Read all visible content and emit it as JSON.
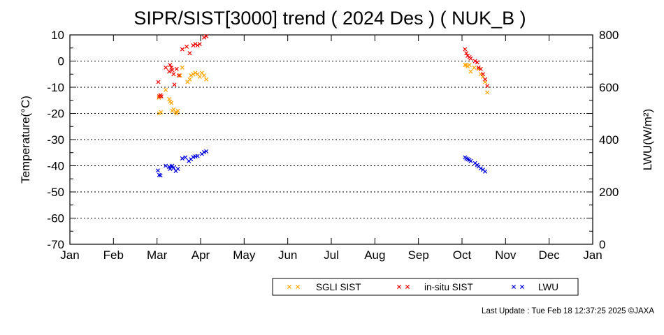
{
  "chart_data": {
    "type": "scatter",
    "title": "SIPR/SIST[3000] trend ( 2024 Des ) ( NUK_B )",
    "ylabel": "Temperature(°C)",
    "y2label": "LWU(W/m²)",
    "ylim": [
      -70,
      10
    ],
    "y2lim": [
      0,
      800
    ],
    "xlim": [
      0,
      12
    ],
    "yticks": [
      "10",
      "0",
      "-10",
      "-20",
      "-30",
      "-40",
      "-50",
      "-60",
      "-70"
    ],
    "y2ticks": [
      "800",
      "600",
      "400",
      "200",
      "0"
    ],
    "months": [
      "Jan",
      "Feb",
      "Mar",
      "Apr",
      "May",
      "Jun",
      "Jul",
      "Aug",
      "Sep",
      "Oct",
      "Nov",
      "Dec",
      "Jan"
    ],
    "grid": true,
    "legend_position": "bottom",
    "series": [
      {
        "name": "SGLI SIST",
        "color": "#ffa500",
        "axis": "left",
        "points": [
          [
            2.04,
            -14
          ],
          [
            2.07,
            -13.5
          ],
          [
            2.09,
            -19.5
          ],
          [
            2.05,
            -20
          ],
          [
            2.2,
            -11
          ],
          [
            2.28,
            -14.5
          ],
          [
            2.3,
            -15.5
          ],
          [
            2.33,
            -16
          ],
          [
            2.35,
            -19
          ],
          [
            2.38,
            -18.5
          ],
          [
            2.43,
            -19.5
          ],
          [
            2.45,
            -20
          ],
          [
            2.48,
            -19
          ],
          [
            2.53,
            -5.5
          ],
          [
            2.58,
            -2.5
          ],
          [
            2.7,
            -8
          ],
          [
            2.75,
            -7
          ],
          [
            2.78,
            -5.5
          ],
          [
            2.83,
            -5
          ],
          [
            2.88,
            -4.5
          ],
          [
            2.93,
            -5
          ],
          [
            2.98,
            -6
          ],
          [
            3.03,
            -4.5
          ],
          [
            3.08,
            -5.5
          ],
          [
            3.13,
            -7
          ],
          [
            9.07,
            -1.5
          ],
          [
            9.1,
            -1.5
          ],
          [
            9.13,
            -2
          ],
          [
            9.17,
            -1.5
          ],
          [
            9.2,
            -4
          ],
          [
            9.28,
            -2.5
          ],
          [
            9.38,
            -3
          ],
          [
            9.43,
            -5
          ],
          [
            9.48,
            -6
          ],
          [
            9.53,
            -8
          ],
          [
            9.58,
            -12
          ]
        ]
      },
      {
        "name": "in-situ SIST",
        "color": "#ee0000",
        "axis": "left",
        "points": [
          [
            2.03,
            -8
          ],
          [
            2.05,
            -13.5
          ],
          [
            2.08,
            -13
          ],
          [
            2.1,
            -13.5
          ],
          [
            2.2,
            -2.5
          ],
          [
            2.28,
            -4
          ],
          [
            2.3,
            -1.5
          ],
          [
            2.33,
            -2.5
          ],
          [
            2.35,
            -3.5
          ],
          [
            2.38,
            -5
          ],
          [
            2.4,
            -9
          ],
          [
            2.45,
            -3
          ],
          [
            2.5,
            -5.5
          ],
          [
            2.58,
            4.5
          ],
          [
            2.68,
            5.5
          ],
          [
            2.75,
            3
          ],
          [
            2.83,
            6
          ],
          [
            2.88,
            6.5
          ],
          [
            2.93,
            6
          ],
          [
            2.98,
            6.5
          ],
          [
            3.08,
            9
          ],
          [
            3.13,
            9.5
          ],
          [
            9.07,
            4.5
          ],
          [
            9.1,
            3
          ],
          [
            9.13,
            2
          ],
          [
            9.17,
            1.5
          ],
          [
            9.2,
            1
          ],
          [
            9.3,
            0
          ],
          [
            9.35,
            -0.5
          ],
          [
            9.38,
            -2.5
          ],
          [
            9.43,
            -3
          ],
          [
            9.48,
            -5
          ],
          [
            9.53,
            -7
          ],
          [
            9.58,
            -9.5
          ]
        ]
      },
      {
        "name": "LWU",
        "color": "#0000dd",
        "axis": "right",
        "points": [
          [
            2.02,
            282
          ],
          [
            2.05,
            265
          ],
          [
            2.08,
            263
          ],
          [
            2.2,
            300
          ],
          [
            2.28,
            295
          ],
          [
            2.3,
            288
          ],
          [
            2.33,
            297
          ],
          [
            2.35,
            300
          ],
          [
            2.38,
            292
          ],
          [
            2.43,
            280
          ],
          [
            2.48,
            288
          ],
          [
            2.58,
            328
          ],
          [
            2.65,
            332
          ],
          [
            2.73,
            318
          ],
          [
            2.78,
            325
          ],
          [
            2.83,
            333
          ],
          [
            2.88,
            336
          ],
          [
            2.93,
            337
          ],
          [
            3.03,
            345
          ],
          [
            3.08,
            352
          ],
          [
            3.13,
            355
          ],
          [
            9.07,
            332
          ],
          [
            9.1,
            328
          ],
          [
            9.13,
            325
          ],
          [
            9.17,
            322
          ],
          [
            9.2,
            318
          ],
          [
            9.3,
            310
          ],
          [
            9.35,
            303
          ],
          [
            9.38,
            297
          ],
          [
            9.43,
            290
          ],
          [
            9.48,
            285
          ],
          [
            9.53,
            278
          ]
        ]
      }
    ]
  },
  "legend": {
    "items": [
      {
        "label": "SGLI SIST",
        "color": "#ffa500"
      },
      {
        "label": "in-situ SIST",
        "color": "#ee0000"
      },
      {
        "label": "LWU",
        "color": "#0000dd"
      }
    ]
  },
  "footer": {
    "text": "Last Update : Tue Feb 18 12:37:25 2025  ©JAXA"
  }
}
